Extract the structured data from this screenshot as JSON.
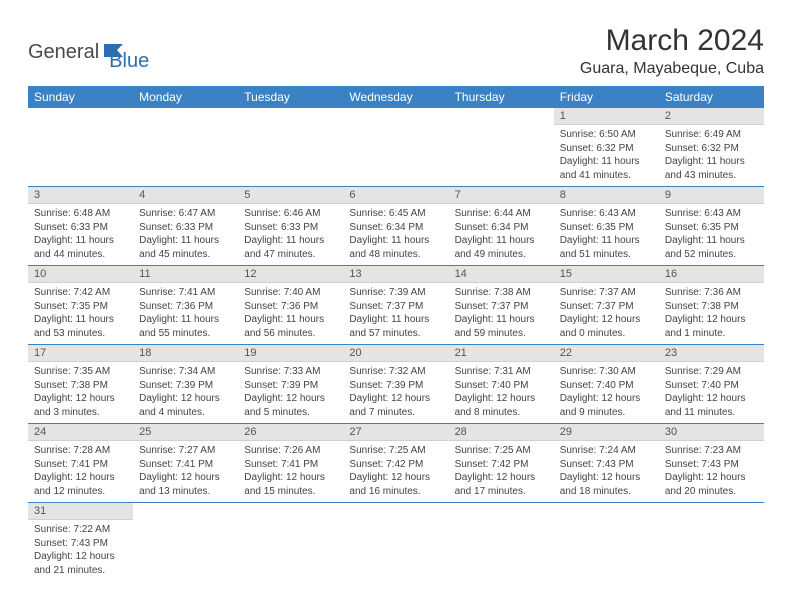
{
  "brand": {
    "part1": "General",
    "part2": "Blue"
  },
  "title": "March 2024",
  "location": "Guara, Mayabeque, Cuba",
  "colors": {
    "header_bg": "#3b82c4",
    "header_text": "#ffffff",
    "daynum_bg": "#e4e4e4",
    "row_border": "#3b82c4",
    "text": "#444444",
    "logo_blue": "#2b6fb0"
  },
  "weekdays": [
    "Sunday",
    "Monday",
    "Tuesday",
    "Wednesday",
    "Thursday",
    "Friday",
    "Saturday"
  ],
  "weeks": [
    [
      null,
      null,
      null,
      null,
      null,
      {
        "n": "1",
        "sr": "Sunrise: 6:50 AM",
        "ss": "Sunset: 6:32 PM",
        "d1": "Daylight: 11 hours",
        "d2": "and 41 minutes."
      },
      {
        "n": "2",
        "sr": "Sunrise: 6:49 AM",
        "ss": "Sunset: 6:32 PM",
        "d1": "Daylight: 11 hours",
        "d2": "and 43 minutes."
      }
    ],
    [
      {
        "n": "3",
        "sr": "Sunrise: 6:48 AM",
        "ss": "Sunset: 6:33 PM",
        "d1": "Daylight: 11 hours",
        "d2": "and 44 minutes."
      },
      {
        "n": "4",
        "sr": "Sunrise: 6:47 AM",
        "ss": "Sunset: 6:33 PM",
        "d1": "Daylight: 11 hours",
        "d2": "and 45 minutes."
      },
      {
        "n": "5",
        "sr": "Sunrise: 6:46 AM",
        "ss": "Sunset: 6:33 PM",
        "d1": "Daylight: 11 hours",
        "d2": "and 47 minutes."
      },
      {
        "n": "6",
        "sr": "Sunrise: 6:45 AM",
        "ss": "Sunset: 6:34 PM",
        "d1": "Daylight: 11 hours",
        "d2": "and 48 minutes."
      },
      {
        "n": "7",
        "sr": "Sunrise: 6:44 AM",
        "ss": "Sunset: 6:34 PM",
        "d1": "Daylight: 11 hours",
        "d2": "and 49 minutes."
      },
      {
        "n": "8",
        "sr": "Sunrise: 6:43 AM",
        "ss": "Sunset: 6:35 PM",
        "d1": "Daylight: 11 hours",
        "d2": "and 51 minutes."
      },
      {
        "n": "9",
        "sr": "Sunrise: 6:43 AM",
        "ss": "Sunset: 6:35 PM",
        "d1": "Daylight: 11 hours",
        "d2": "and 52 minutes."
      }
    ],
    [
      {
        "n": "10",
        "sr": "Sunrise: 7:42 AM",
        "ss": "Sunset: 7:35 PM",
        "d1": "Daylight: 11 hours",
        "d2": "and 53 minutes."
      },
      {
        "n": "11",
        "sr": "Sunrise: 7:41 AM",
        "ss": "Sunset: 7:36 PM",
        "d1": "Daylight: 11 hours",
        "d2": "and 55 minutes."
      },
      {
        "n": "12",
        "sr": "Sunrise: 7:40 AM",
        "ss": "Sunset: 7:36 PM",
        "d1": "Daylight: 11 hours",
        "d2": "and 56 minutes."
      },
      {
        "n": "13",
        "sr": "Sunrise: 7:39 AM",
        "ss": "Sunset: 7:37 PM",
        "d1": "Daylight: 11 hours",
        "d2": "and 57 minutes."
      },
      {
        "n": "14",
        "sr": "Sunrise: 7:38 AM",
        "ss": "Sunset: 7:37 PM",
        "d1": "Daylight: 11 hours",
        "d2": "and 59 minutes."
      },
      {
        "n": "15",
        "sr": "Sunrise: 7:37 AM",
        "ss": "Sunset: 7:37 PM",
        "d1": "Daylight: 12 hours",
        "d2": "and 0 minutes."
      },
      {
        "n": "16",
        "sr": "Sunrise: 7:36 AM",
        "ss": "Sunset: 7:38 PM",
        "d1": "Daylight: 12 hours",
        "d2": "and 1 minute."
      }
    ],
    [
      {
        "n": "17",
        "sr": "Sunrise: 7:35 AM",
        "ss": "Sunset: 7:38 PM",
        "d1": "Daylight: 12 hours",
        "d2": "and 3 minutes."
      },
      {
        "n": "18",
        "sr": "Sunrise: 7:34 AM",
        "ss": "Sunset: 7:39 PM",
        "d1": "Daylight: 12 hours",
        "d2": "and 4 minutes."
      },
      {
        "n": "19",
        "sr": "Sunrise: 7:33 AM",
        "ss": "Sunset: 7:39 PM",
        "d1": "Daylight: 12 hours",
        "d2": "and 5 minutes."
      },
      {
        "n": "20",
        "sr": "Sunrise: 7:32 AM",
        "ss": "Sunset: 7:39 PM",
        "d1": "Daylight: 12 hours",
        "d2": "and 7 minutes."
      },
      {
        "n": "21",
        "sr": "Sunrise: 7:31 AM",
        "ss": "Sunset: 7:40 PM",
        "d1": "Daylight: 12 hours",
        "d2": "and 8 minutes."
      },
      {
        "n": "22",
        "sr": "Sunrise: 7:30 AM",
        "ss": "Sunset: 7:40 PM",
        "d1": "Daylight: 12 hours",
        "d2": "and 9 minutes."
      },
      {
        "n": "23",
        "sr": "Sunrise: 7:29 AM",
        "ss": "Sunset: 7:40 PM",
        "d1": "Daylight: 12 hours",
        "d2": "and 11 minutes."
      }
    ],
    [
      {
        "n": "24",
        "sr": "Sunrise: 7:28 AM",
        "ss": "Sunset: 7:41 PM",
        "d1": "Daylight: 12 hours",
        "d2": "and 12 minutes."
      },
      {
        "n": "25",
        "sr": "Sunrise: 7:27 AM",
        "ss": "Sunset: 7:41 PM",
        "d1": "Daylight: 12 hours",
        "d2": "and 13 minutes."
      },
      {
        "n": "26",
        "sr": "Sunrise: 7:26 AM",
        "ss": "Sunset: 7:41 PM",
        "d1": "Daylight: 12 hours",
        "d2": "and 15 minutes."
      },
      {
        "n": "27",
        "sr": "Sunrise: 7:25 AM",
        "ss": "Sunset: 7:42 PM",
        "d1": "Daylight: 12 hours",
        "d2": "and 16 minutes."
      },
      {
        "n": "28",
        "sr": "Sunrise: 7:25 AM",
        "ss": "Sunset: 7:42 PM",
        "d1": "Daylight: 12 hours",
        "d2": "and 17 minutes."
      },
      {
        "n": "29",
        "sr": "Sunrise: 7:24 AM",
        "ss": "Sunset: 7:43 PM",
        "d1": "Daylight: 12 hours",
        "d2": "and 18 minutes."
      },
      {
        "n": "30",
        "sr": "Sunrise: 7:23 AM",
        "ss": "Sunset: 7:43 PM",
        "d1": "Daylight: 12 hours",
        "d2": "and 20 minutes."
      }
    ],
    [
      {
        "n": "31",
        "sr": "Sunrise: 7:22 AM",
        "ss": "Sunset: 7:43 PM",
        "d1": "Daylight: 12 hours",
        "d2": "and 21 minutes."
      },
      null,
      null,
      null,
      null,
      null,
      null
    ]
  ]
}
